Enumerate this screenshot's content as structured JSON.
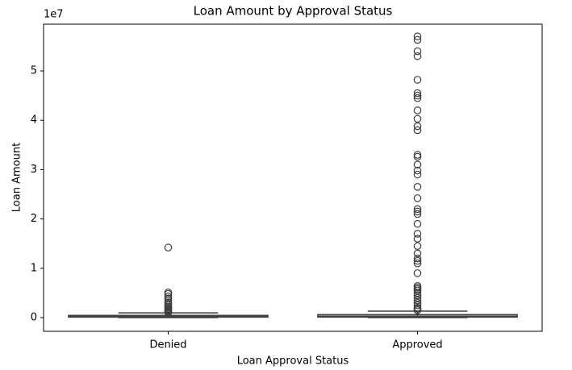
{
  "chart_data": {
    "type": "box",
    "title": "Loan Amount by Approval Status",
    "x_label": "Loan Approval Status",
    "y_label": "Loan Amount",
    "y_offset_label": "1e7",
    "categories": [
      "Denied",
      "Approved"
    ],
    "color": "#3f3f3f",
    "ylim": [
      -2780000,
      59480000
    ],
    "yticks": [
      {
        "value": 0,
        "label": "0"
      },
      {
        "value": 10000000,
        "label": "1"
      },
      {
        "value": 20000000,
        "label": "2"
      },
      {
        "value": 30000000,
        "label": "3"
      },
      {
        "value": 40000000,
        "label": "4"
      },
      {
        "value": 50000000,
        "label": "5"
      }
    ],
    "boxes": [
      {
        "whislo": 0,
        "q1": 100000,
        "median": 200000,
        "q3": 450000,
        "whishi": 950000,
        "outliers": [
          14200000,
          5100000,
          4800000,
          4300000,
          3900000,
          3500000,
          3100000,
          2800000,
          2500000,
          2200000,
          2000000,
          1800000,
          1600000,
          1400000,
          1200000,
          1050000
        ]
      },
      {
        "whislo": 0,
        "q1": 100000,
        "median": 250000,
        "q3": 600000,
        "whishi": 1300000,
        "outliers": [
          57000000,
          56300000,
          54000000,
          53000000,
          48200000,
          45500000,
          45000000,
          44500000,
          42000000,
          40300000,
          38800000,
          38000000,
          33000000,
          32600000,
          31000000,
          29800000,
          29000000,
          26500000,
          24200000,
          22000000,
          21500000,
          21000000,
          19000000,
          17000000,
          16000000,
          14500000,
          13000000,
          12000000,
          11500000,
          11000000,
          9000000,
          6400000,
          6100000,
          5800000,
          5500000,
          5000000,
          4500000,
          4000000,
          3500000,
          3000000,
          2500000,
          2000000,
          1800000,
          1500000
        ]
      }
    ]
  }
}
